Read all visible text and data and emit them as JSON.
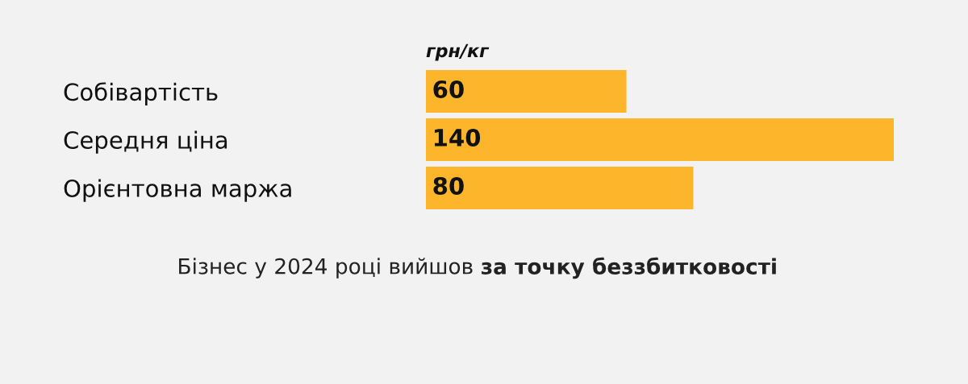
{
  "chart_data": {
    "type": "bar",
    "orientation": "horizontal",
    "title": "грн/кг",
    "categories": [
      "Собівартість",
      "Середня ціна",
      "Орієнтовна маржа"
    ],
    "values": [
      60,
      140,
      80
    ],
    "color": "#fdb52c",
    "data_labels": true,
    "tick_labels": "y",
    "annotations": [
      "Бізнес у 2024 році вийшов",
      "за точку беззбитковості"
    ]
  }
}
